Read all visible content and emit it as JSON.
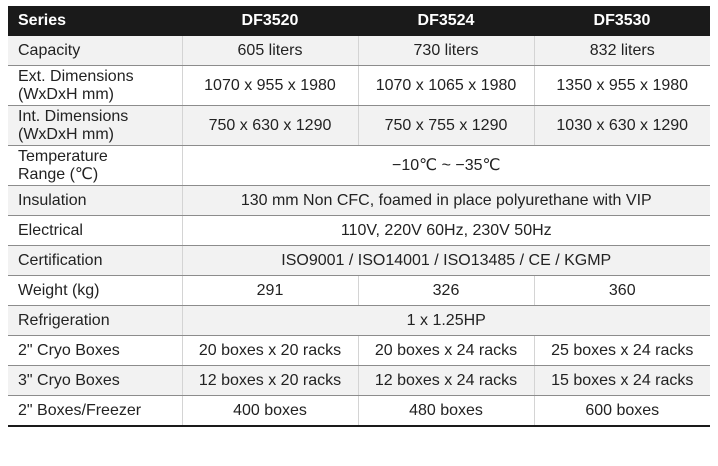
{
  "header": {
    "series_label": "Series",
    "models": [
      "DF3520",
      "DF3524",
      "DF3530"
    ]
  },
  "rows": {
    "capacity": {
      "label": "Capacity",
      "values": [
        "605 liters",
        "730 liters",
        "832 liters"
      ]
    },
    "ext_dim": {
      "label_line1": "Ext. Dimensions",
      "label_line2": "(WxDxH mm)",
      "values": [
        "1070 x 955 x 1980",
        "1070 x 1065 x 1980",
        "1350 x 955 x 1980"
      ]
    },
    "int_dim": {
      "label_line1": "Int. Dimensions",
      "label_line2": "(WxDxH mm)",
      "values": [
        "750 x 630 x 1290",
        "750 x 755 x 1290",
        "1030 x 630 x 1290"
      ]
    },
    "temp": {
      "label_line1": "Temperature",
      "label_line2": "Range (℃)",
      "value": "−10℃ ~ −35℃"
    },
    "insulation": {
      "label": "Insulation",
      "value": "130 mm Non CFC, foamed in place polyurethane with VIP"
    },
    "electrical": {
      "label": "Electrical",
      "value": "110V, 220V 60Hz, 230V 50Hz"
    },
    "certification": {
      "label": "Certification",
      "value": "ISO9001 / ISO14001 / ISO13485 / CE / KGMP"
    },
    "weight": {
      "label": "Weight (kg)",
      "values": [
        "291",
        "326",
        "360"
      ]
    },
    "refrigeration": {
      "label": "Refrigeration",
      "value": "1 x 1.25HP"
    },
    "cryo2": {
      "label": "2\" Cryo Boxes",
      "values": [
        "20 boxes x 20 racks",
        "20 boxes x 24 racks",
        "25 boxes x 24 racks"
      ]
    },
    "cryo3": {
      "label": "3\" Cryo Boxes",
      "values": [
        "12 boxes x 20 racks",
        "12 boxes x 24 racks",
        "15 boxes x 24 racks"
      ]
    },
    "boxes_freezer": {
      "label": "2\" Boxes/Freezer",
      "values": [
        "400 boxes",
        "480 boxes",
        "600 boxes"
      ]
    }
  }
}
